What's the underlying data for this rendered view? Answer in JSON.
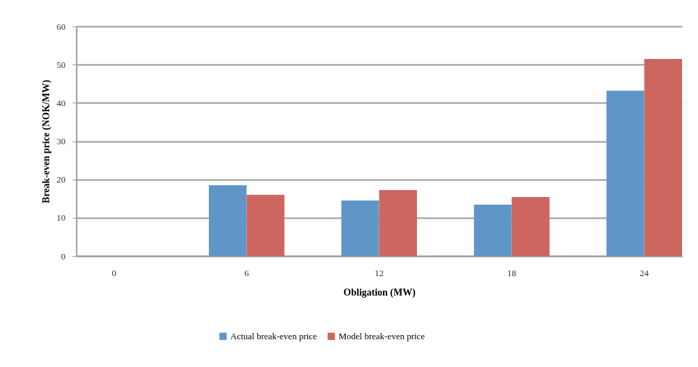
{
  "chart_data": {
    "type": "bar",
    "xlabel": "Obligation (MW)",
    "ylabel": "Break-even price (NOK/MW)",
    "categories": [
      "0",
      "6",
      "12",
      "18",
      "24"
    ],
    "series": [
      {
        "name": "Actual break-even price",
        "color": "#5f96c8",
        "values": [
          null,
          18.5,
          14.5,
          13.4,
          43.2
        ]
      },
      {
        "name": "Model break-even price",
        "color": "#cd665e",
        "values": [
          null,
          16.0,
          17.2,
          15.4,
          51.5
        ]
      }
    ],
    "ylim": [
      0,
      60
    ],
    "yticks": [
      0,
      10,
      20,
      30,
      40,
      50,
      60
    ],
    "grid": "y",
    "legend": "bottom"
  }
}
